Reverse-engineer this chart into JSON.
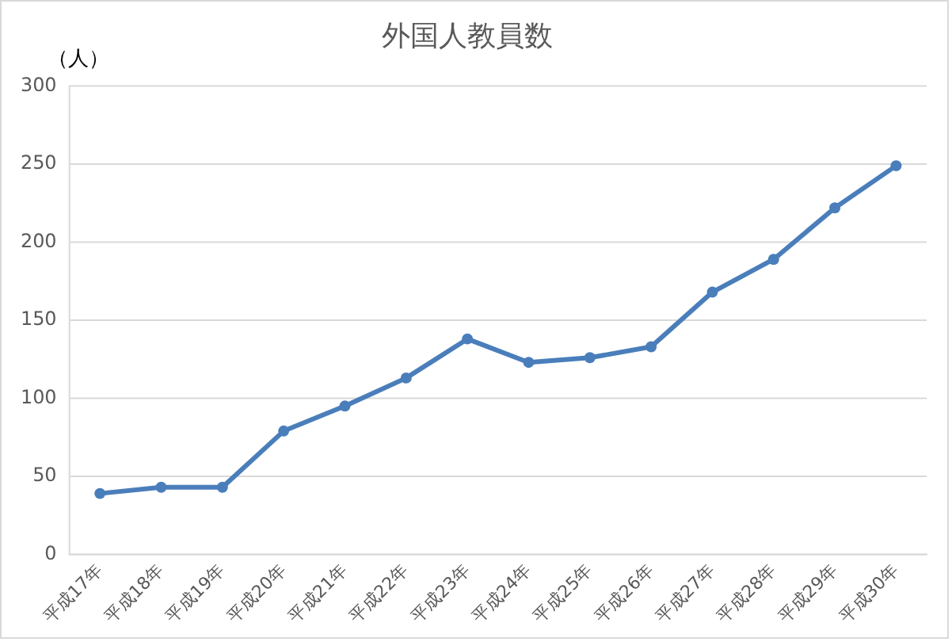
{
  "chart_data": {
    "type": "line",
    "title": "外国人教員数",
    "ylabel": "（人）",
    "categories": [
      "平成17年",
      "平成18年",
      "平成19年",
      "平成20年",
      "平成21年",
      "平成22年",
      "平成23年",
      "平成24年",
      "平成25年",
      "平成26年",
      "平成27年",
      "平成28年",
      "平成29年",
      "平成30年"
    ],
    "series": [
      {
        "color": "#4a7ebb",
        "values": [
          39,
          43,
          43,
          79,
          95,
          113,
          138,
          123,
          126,
          133,
          168,
          189,
          222,
          249
        ]
      }
    ],
    "ylim": [
      0,
      300
    ],
    "yticks": [
      0,
      50,
      100,
      150,
      200,
      250,
      300
    ],
    "grid": "y",
    "legend": false,
    "marker": "circle",
    "line_style": "solid"
  }
}
